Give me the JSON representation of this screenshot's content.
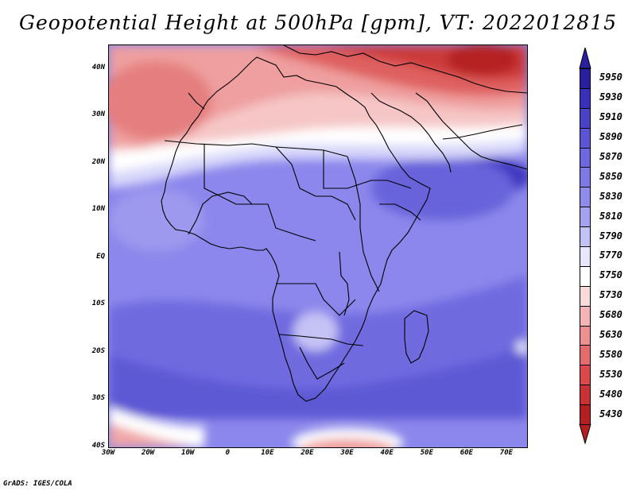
{
  "title": "Geopotential Height at 500hPa [gpm], VT: 2022012815",
  "credit": "GrADS: IGES/COLA",
  "map": {
    "lat_labels": [
      "40N",
      "30N",
      "20N",
      "10N",
      "EQ",
      "10S",
      "20S",
      "30S",
      "40S"
    ],
    "lon_labels": [
      "30W",
      "20W",
      "10W",
      "0",
      "10E",
      "20E",
      "30E",
      "40E",
      "50E",
      "60E",
      "70E"
    ],
    "lat_range": [
      -40,
      45
    ],
    "lon_range": [
      -30,
      75
    ]
  },
  "colorbar": {
    "levels": [
      "5950",
      "5930",
      "5910",
      "5890",
      "5870",
      "5850",
      "5830",
      "5810",
      "5790",
      "5770",
      "5750",
      "5730",
      "5680",
      "5630",
      "5580",
      "5530",
      "5480",
      "5430"
    ],
    "colors": [
      "#2a1f9e",
      "#3a2fb8",
      "#4a43c8",
      "#5a55d6",
      "#6c68df",
      "#7d7ae6",
      "#8f8cec",
      "#a4a2f1",
      "#c3c2f6",
      "#e6e6fc",
      "#ffffff",
      "#f9dada",
      "#f2b4b4",
      "#ec9090",
      "#e46c6c",
      "#da4a4a",
      "#c83232",
      "#b32020"
    ],
    "top_arrow_color": "#2a1f9e",
    "bottom_arrow_color": "#b32020"
  }
}
